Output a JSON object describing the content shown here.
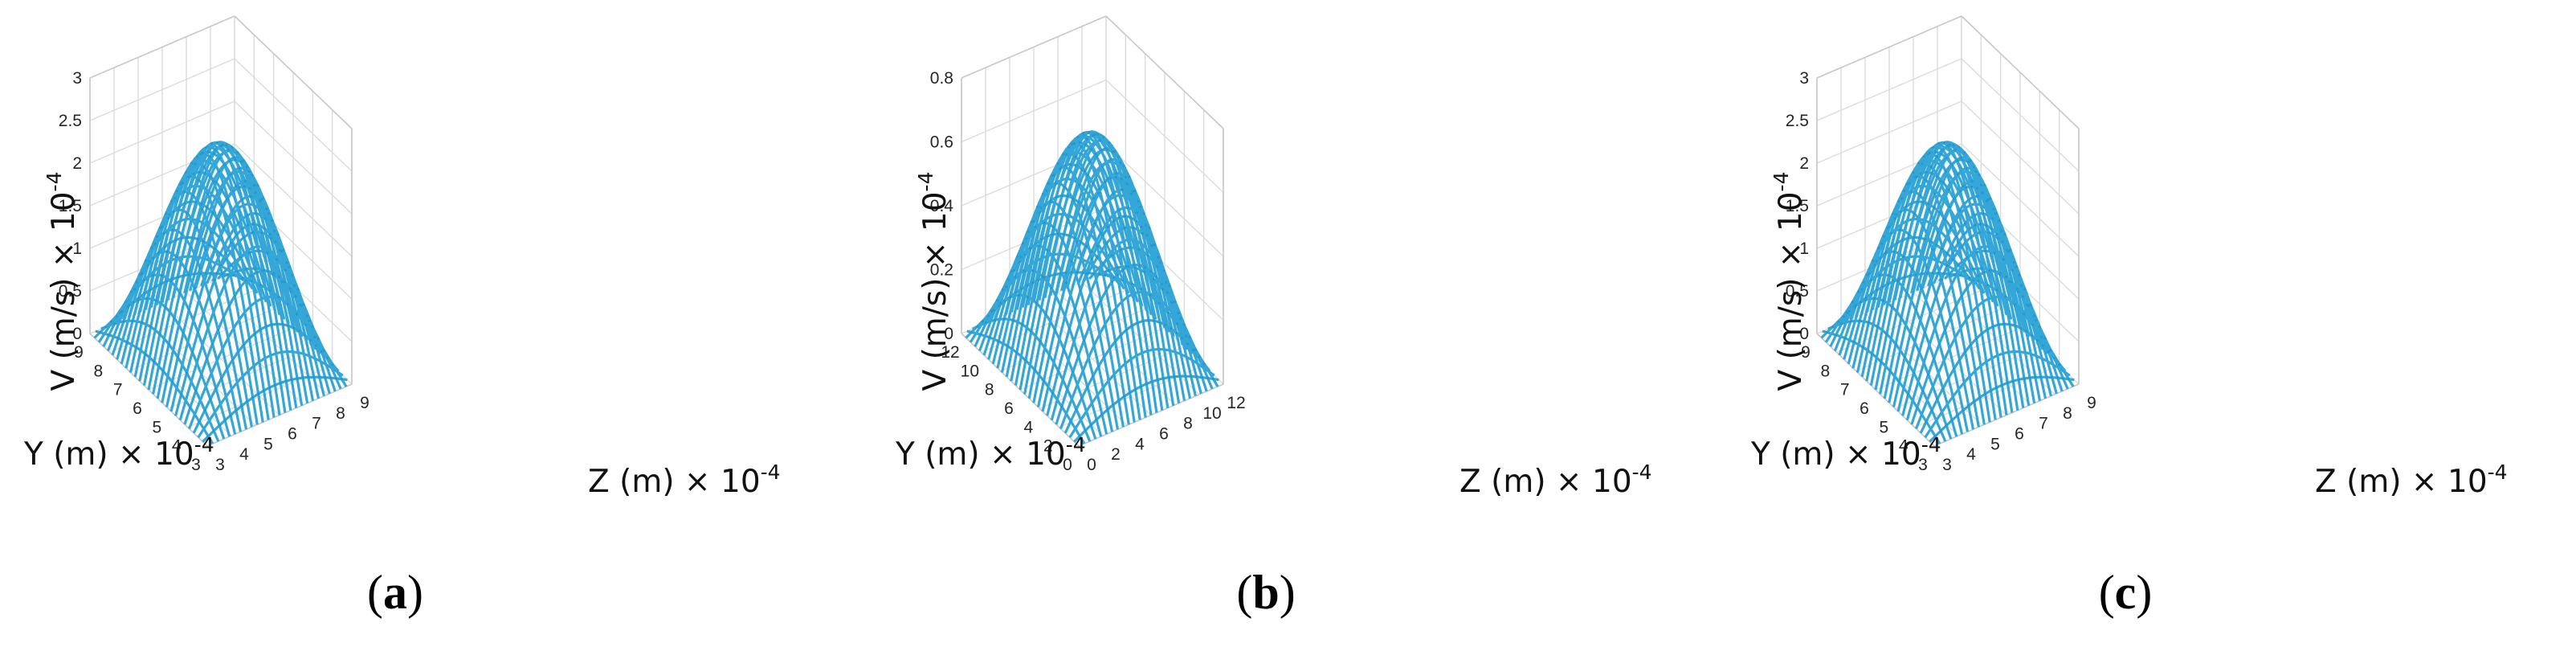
{
  "chart_data": [
    {
      "type": "surface",
      "panel": "(a)",
      "caption_open": "(",
      "caption_letter": "a",
      "caption_close": ")",
      "zlabel": "V (m/s) × 10",
      "zlabel_exp": "-4",
      "ylabel": "Y (m) × 10",
      "ylabel_exp": "-4",
      "xlabel": "Z (m) × 10",
      "xlabel_exp": "-4",
      "zlim": [
        0,
        3
      ],
      "zticks": [
        "0",
        "0.5",
        "1",
        "1.5",
        "2",
        "2.5",
        "3"
      ],
      "ylim": [
        3,
        9
      ],
      "yticks": [
        "3",
        "4",
        "5",
        "6",
        "7",
        "8",
        "9"
      ],
      "xlim": [
        3,
        9
      ],
      "xticks": [
        "3",
        "4",
        "5",
        "6",
        "7",
        "8",
        "9"
      ],
      "peak_value": 2.5,
      "surface_color": "#2aa3d6"
    },
    {
      "type": "surface",
      "panel": "(b)",
      "caption_open": "(",
      "caption_letter": "b",
      "caption_close": ")",
      "zlabel": "V (m/s) × 10",
      "zlabel_exp": "-4",
      "ylabel": "Y (m) × 10",
      "ylabel_exp": "-4",
      "xlabel": "Z (m) × 10",
      "xlabel_exp": "-4",
      "zlim": [
        0,
        0.8
      ],
      "zticks": [
        "0",
        "0.2",
        "0.4",
        "0.6",
        "0.8"
      ],
      "ylim": [
        0,
        12
      ],
      "yticks": [
        "0",
        "2",
        "4",
        "6",
        "8",
        "10",
        "12"
      ],
      "xlim": [
        0,
        12
      ],
      "xticks": [
        "0",
        "2",
        "4",
        "6",
        "8",
        "10",
        "12"
      ],
      "peak_value": 0.7,
      "surface_color": "#2aa3d6"
    },
    {
      "type": "surface",
      "panel": "(c)",
      "caption_open": "(",
      "caption_letter": "c",
      "caption_close": ")",
      "zlabel": "V (m/s) × 10",
      "zlabel_exp": "-4",
      "ylabel": "Y (m) × 10",
      "ylabel_exp": "-4",
      "xlabel": "Z (m) × 10",
      "xlabel_exp": "-4",
      "zlim": [
        0,
        3
      ],
      "zticks": [
        "0",
        "0.5",
        "1",
        "1.5",
        "2",
        "2.5",
        "3"
      ],
      "ylim": [
        3,
        9
      ],
      "yticks": [
        "3",
        "4",
        "5",
        "6",
        "7",
        "8",
        "9"
      ],
      "xlim": [
        3,
        9
      ],
      "xticks": [
        "3",
        "4",
        "5",
        "6",
        "7",
        "8",
        "9"
      ],
      "peak_value": 2.5,
      "surface_color": "#2aa3d6"
    }
  ]
}
